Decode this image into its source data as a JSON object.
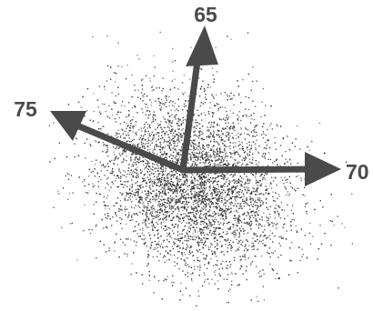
{
  "diagram": {
    "vectors": [
      {
        "label": "65"
      },
      {
        "label": "70"
      },
      {
        "label": "75"
      }
    ],
    "colors": {
      "arrow": "#4a4a4a",
      "dots": "#333333",
      "label": "#4a4a4a",
      "background": "#ffffff"
    }
  }
}
